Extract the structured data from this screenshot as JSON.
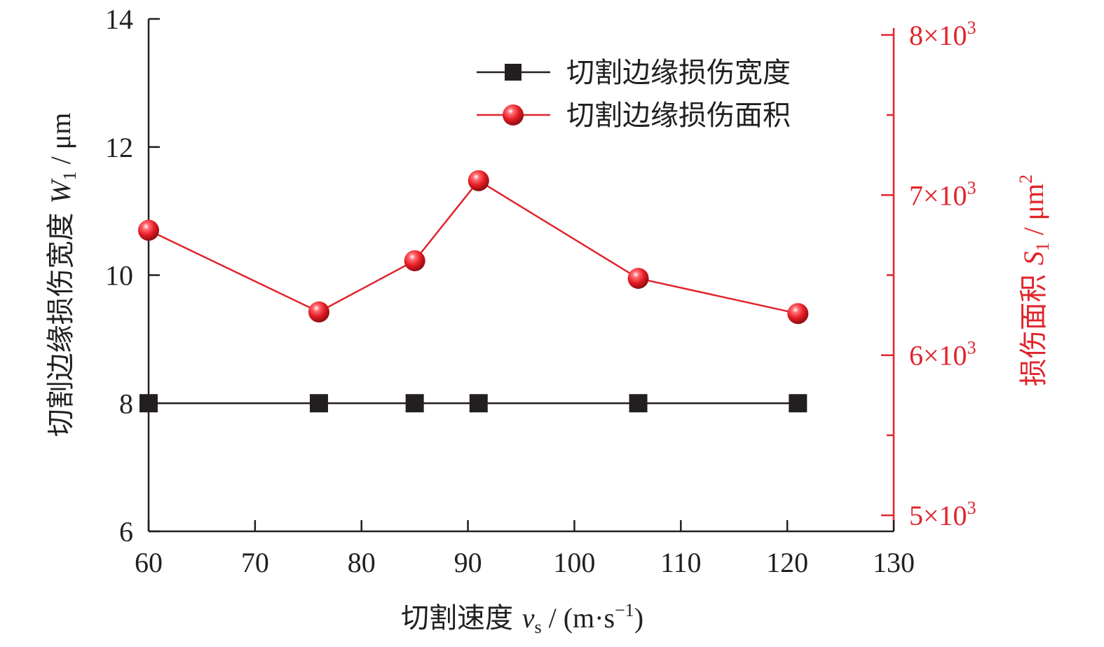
{
  "chart_data": {
    "type": "line",
    "title": "",
    "x": [
      60,
      76,
      85,
      91,
      106,
      121
    ],
    "xlim": [
      60,
      130
    ],
    "x_ticks": [
      "60",
      "70",
      "80",
      "90",
      "100",
      "110",
      "120",
      "130"
    ],
    "xlabel": {
      "prefix": "切割速度 ",
      "var": "v",
      "sub": "s",
      "unit_open": " / (m·s",
      "sup": "−1",
      "unit_close": ")"
    },
    "left_axis": {
      "ylim": [
        6,
        14
      ],
      "ticks": [
        "6",
        "8",
        "10",
        "12",
        "14"
      ],
      "label": {
        "prefix": "切割边缘损伤宽度 ",
        "var": "W",
        "sub": "1",
        "unit": " / μm"
      },
      "color": "#231f20"
    },
    "right_axis": {
      "ylim": [
        4900,
        8100
      ],
      "ticks": [
        {
          "value": 5000,
          "mant": "5×10",
          "exp": "3"
        },
        {
          "value": 6000,
          "mant": "6×10",
          "exp": "3"
        },
        {
          "value": 7000,
          "mant": "7×10",
          "exp": "3"
        },
        {
          "value": 8000,
          "mant": "8×10",
          "exp": "3"
        }
      ],
      "label": {
        "prefix": "损伤面积 ",
        "var": "S",
        "sub": "1",
        "unit": " / μm",
        "sup": "2"
      },
      "color": "#e0242b"
    },
    "series": [
      {
        "name": "切割边缘损伤宽度",
        "axis": "left",
        "marker": "square",
        "color": "#231f20",
        "values": [
          8,
          8,
          8,
          8,
          8,
          8
        ]
      },
      {
        "name": "切割边缘损伤面积",
        "axis": "right",
        "marker": "circle",
        "color": "#e0242b",
        "values": [
          6780,
          6270,
          6590,
          7090,
          6480,
          6260
        ]
      }
    ],
    "legend_position": "top-right",
    "grid": false
  }
}
